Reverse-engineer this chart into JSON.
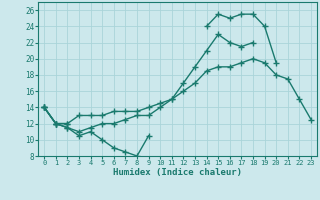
{
  "xlabel": "Humidex (Indice chaleur)",
  "x_values": [
    0,
    1,
    2,
    3,
    4,
    5,
    6,
    7,
    8,
    9,
    10,
    11,
    12,
    13,
    14,
    15,
    16,
    17,
    18,
    19,
    20,
    21,
    22,
    23
  ],
  "line1_y": [
    14,
    12,
    11.5,
    10.5,
    11,
    10,
    9,
    8.5,
    8,
    10.5,
    null,
    null,
    null,
    null,
    null,
    null,
    null,
    null,
    null,
    null,
    null,
    null,
    null,
    null
  ],
  "line2_y": [
    14,
    12,
    12,
    13,
    13,
    13,
    13.5,
    13.5,
    13.5,
    14,
    14.5,
    15,
    16,
    17,
    18.5,
    19,
    19,
    19.5,
    20,
    19.5,
    18,
    17.5,
    15,
    12.5
  ],
  "line3_y": [
    14,
    12,
    11.5,
    11,
    11.5,
    12,
    12,
    12.5,
    13,
    13,
    14,
    15,
    17,
    19,
    21,
    23,
    22,
    21.5,
    22,
    null,
    null,
    null,
    null,
    null
  ],
  "line4_y": [
    14,
    12,
    12,
    null,
    null,
    null,
    null,
    null,
    null,
    null,
    null,
    null,
    null,
    null,
    24,
    25.5,
    25,
    25.5,
    25.5,
    24,
    19.5,
    null,
    null,
    null
  ],
  "bg_color": "#cce8ec",
  "line_color": "#1a7a6e",
  "grid_color": "#aad4d9",
  "ylim": [
    8,
    27
  ],
  "xlim": [
    -0.5,
    23.5
  ],
  "yticks": [
    8,
    10,
    12,
    14,
    16,
    18,
    20,
    22,
    24,
    26
  ],
  "xticks": [
    0,
    1,
    2,
    3,
    4,
    5,
    6,
    7,
    8,
    9,
    10,
    11,
    12,
    13,
    14,
    15,
    16,
    17,
    18,
    19,
    20,
    21,
    22,
    23
  ],
  "marker": "+",
  "marker_size": 4,
  "linewidth": 1.0
}
